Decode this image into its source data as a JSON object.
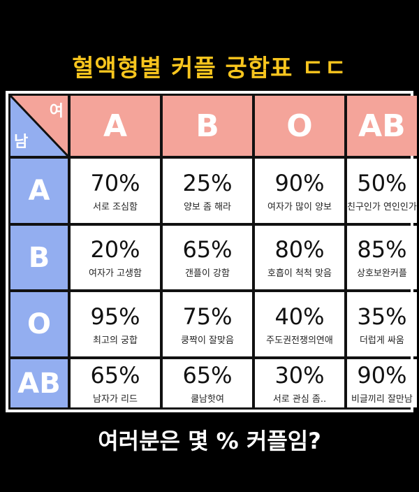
{
  "title": "혈액형별 커플 궁합표 ㄷㄷ",
  "footer": "여러분은 몇 % 커플임?",
  "colors": {
    "title": "#f7c51e",
    "female_header": "#f4a49a",
    "male_header": "#93aef0"
  },
  "corner": {
    "female": "여",
    "male": "남"
  },
  "columns": [
    "A",
    "B",
    "O",
    "AB"
  ],
  "rows": [
    {
      "label": "A",
      "cells": [
        {
          "pct": "70%",
          "desc": "서로 조심함"
        },
        {
          "pct": "25%",
          "desc": "양보 좀 해라"
        },
        {
          "pct": "90%",
          "desc": "여자가 많이 양보"
        },
        {
          "pct": "50%",
          "desc": "친구인가 연인인가"
        }
      ]
    },
    {
      "label": "B",
      "cells": [
        {
          "pct": "20%",
          "desc": "여자가 고생함"
        },
        {
          "pct": "65%",
          "desc": "갠플이 강함"
        },
        {
          "pct": "80%",
          "desc": "호흡이 척척 맞음"
        },
        {
          "pct": "85%",
          "desc": "상호보완커플"
        }
      ]
    },
    {
      "label": "O",
      "cells": [
        {
          "pct": "95%",
          "desc": "최고의 궁합"
        },
        {
          "pct": "75%",
          "desc": "쿵짝이 잘맞음"
        },
        {
          "pct": "40%",
          "desc": "주도권전쟁의연애"
        },
        {
          "pct": "35%",
          "desc": "더럽게 싸움"
        }
      ]
    },
    {
      "label": "AB",
      "cells": [
        {
          "pct": "65%",
          "desc": "남자가 리드"
        },
        {
          "pct": "65%",
          "desc": "쿨남핫여"
        },
        {
          "pct": "30%",
          "desc": "서로 관심 좀.."
        },
        {
          "pct": "90%",
          "desc": "비글끼리 잘만남"
        }
      ]
    }
  ]
}
